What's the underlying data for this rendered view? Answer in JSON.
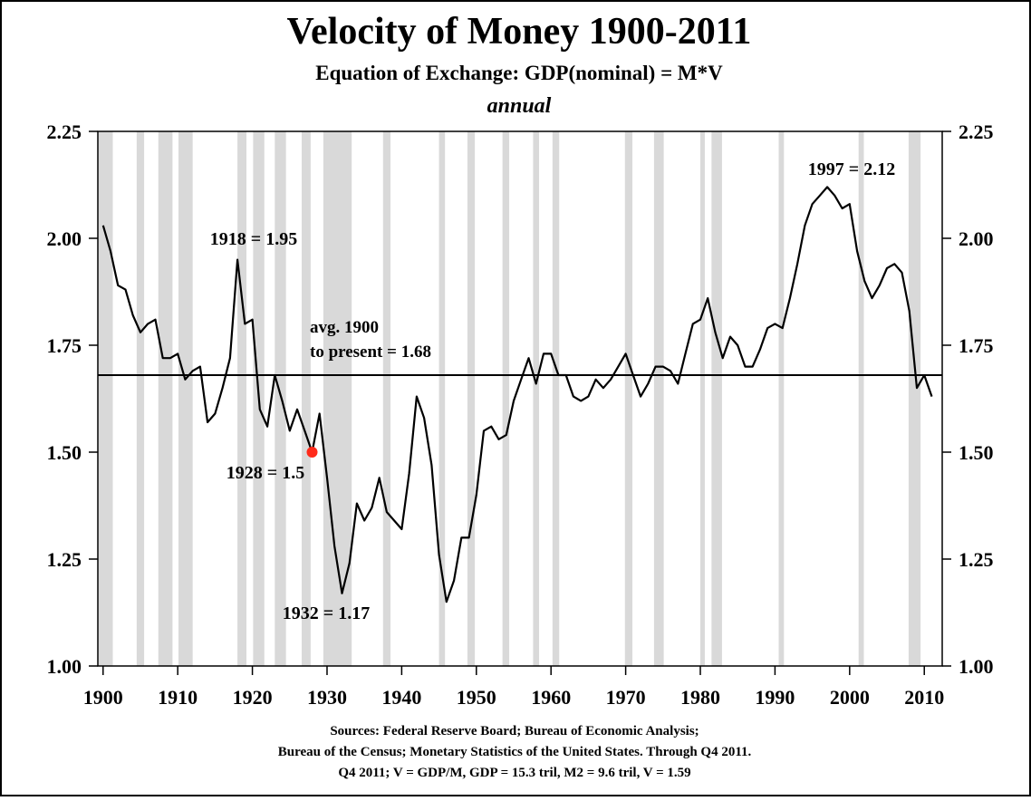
{
  "chart_data": {
    "type": "line",
    "title": "Velocity of Money 1900-2011",
    "subtitle": "Equation of Exchange: GDP(nominal) = M*V",
    "frequency": "annual",
    "x": [
      1900,
      1901,
      1902,
      1903,
      1904,
      1905,
      1906,
      1907,
      1908,
      1909,
      1910,
      1911,
      1912,
      1913,
      1914,
      1915,
      1916,
      1917,
      1918,
      1919,
      1920,
      1921,
      1922,
      1923,
      1924,
      1925,
      1926,
      1927,
      1928,
      1929,
      1930,
      1931,
      1932,
      1933,
      1934,
      1935,
      1936,
      1937,
      1938,
      1939,
      1940,
      1941,
      1942,
      1943,
      1944,
      1945,
      1946,
      1947,
      1948,
      1949,
      1950,
      1951,
      1952,
      1953,
      1954,
      1955,
      1956,
      1957,
      1958,
      1959,
      1960,
      1961,
      1962,
      1963,
      1964,
      1965,
      1966,
      1967,
      1968,
      1969,
      1970,
      1971,
      1972,
      1973,
      1974,
      1975,
      1976,
      1977,
      1978,
      1979,
      1980,
      1981,
      1982,
      1983,
      1984,
      1985,
      1986,
      1987,
      1988,
      1989,
      1990,
      1991,
      1992,
      1993,
      1994,
      1995,
      1996,
      1997,
      1998,
      1999,
      2000,
      2001,
      2002,
      2003,
      2004,
      2005,
      2006,
      2007,
      2008,
      2009,
      2010,
      2011
    ],
    "series": [
      {
        "name": "Velocity",
        "color": "#000000",
        "values": [
          2.03,
          1.97,
          1.89,
          1.88,
          1.82,
          1.78,
          1.8,
          1.81,
          1.72,
          1.72,
          1.73,
          1.67,
          1.69,
          1.7,
          1.57,
          1.59,
          1.65,
          1.72,
          1.95,
          1.8,
          1.81,
          1.6,
          1.56,
          1.68,
          1.62,
          1.55,
          1.6,
          1.55,
          1.5,
          1.59,
          1.44,
          1.28,
          1.17,
          1.24,
          1.38,
          1.34,
          1.37,
          1.44,
          1.36,
          1.34,
          1.32,
          1.45,
          1.63,
          1.58,
          1.47,
          1.26,
          1.15,
          1.2,
          1.3,
          1.3,
          1.4,
          1.55,
          1.56,
          1.53,
          1.54,
          1.62,
          1.67,
          1.72,
          1.66,
          1.73,
          1.73,
          1.68,
          1.68,
          1.63,
          1.62,
          1.63,
          1.67,
          1.65,
          1.67,
          1.7,
          1.73,
          1.68,
          1.63,
          1.66,
          1.7,
          1.7,
          1.69,
          1.66,
          1.73,
          1.8,
          1.81,
          1.86,
          1.78,
          1.72,
          1.77,
          1.75,
          1.7,
          1.7,
          1.74,
          1.79,
          1.8,
          1.79,
          1.86,
          1.94,
          2.03,
          2.08,
          2.1,
          2.12,
          2.1,
          2.07,
          2.08,
          1.97,
          1.9,
          1.86,
          1.89,
          1.93,
          1.94,
          1.92,
          1.83,
          1.65,
          1.68,
          1.63
        ]
      }
    ],
    "recessions": [
      [
        1899.4,
        1901.3
      ],
      [
        1904.5,
        1905.5
      ],
      [
        1907.4,
        1909.3
      ],
      [
        1910.1,
        1912.0
      ],
      [
        1918.0,
        1919.2
      ],
      [
        1920.1,
        1921.6
      ],
      [
        1923.0,
        1924.5
      ],
      [
        1926.6,
        1927.8
      ],
      [
        1929.5,
        1933.3
      ],
      [
        1937.5,
        1938.5
      ],
      [
        1945.0,
        1945.8
      ],
      [
        1948.8,
        1949.8
      ],
      [
        1953.5,
        1954.4
      ],
      [
        1957.6,
        1958.4
      ],
      [
        1960.2,
        1961.1
      ],
      [
        1969.9,
        1970.9
      ],
      [
        1973.8,
        1975.1
      ],
      [
        1980.0,
        1980.6
      ],
      [
        1981.5,
        1982.9
      ],
      [
        1990.5,
        1991.2
      ],
      [
        2001.2,
        2001.9
      ],
      [
        2007.9,
        2009.5
      ]
    ],
    "recession_color": "#d9d9d9",
    "average": 1.68,
    "average_label": [
      "avg. 1900",
      "to present = 1.68"
    ],
    "highlight": {
      "x": 1928,
      "y": 1.5,
      "color": "#ff2a1a"
    },
    "annotations": [
      "1918 = 1.95",
      "1997 = 2.12",
      "1928 = 1.5",
      "1932 = 1.17"
    ],
    "sources": [
      "Sources: Federal Reserve Board; Bureau of Economic Analysis;",
      "Bureau of the Census; Monetary Statistics of the United States. Through Q4 2011.",
      "Q4 2011; V = GDP/M, GDP = 15.3 tril, M2 = 9.6 tril, V = 1.59"
    ],
    "xlim": [
      1899.3,
      2012.4
    ],
    "xticks": [
      1900,
      1910,
      1920,
      1930,
      1940,
      1950,
      1960,
      1970,
      1980,
      1990,
      2000,
      2010
    ],
    "ylim": [
      1,
      2.25
    ],
    "yticks": [
      {
        "value": 1,
        "label": "1.00"
      },
      1.25,
      {
        "value": 1.5,
        "label": "1.50"
      },
      1.75,
      {
        "value": 2,
        "label": "2.00"
      },
      2.25
    ]
  }
}
